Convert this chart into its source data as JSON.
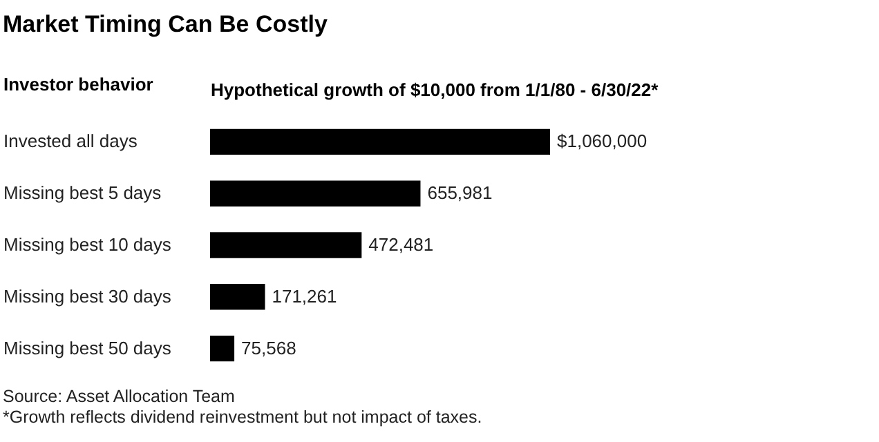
{
  "chart_data": {
    "type": "bar",
    "orientation": "horizontal",
    "title": "Market Timing Can Be Costly",
    "ylabel": "Investor behavior",
    "xlabel": "Hypothetical growth of $10,000 from 1/1/80 - 6/30/22*",
    "categories": [
      "Invested all days",
      "Missing best 5 days",
      "Missing best 10 days",
      "Missing best 30 days",
      "Missing best 50 days"
    ],
    "values": [
      1060000,
      655981,
      472481,
      171261,
      75568
    ],
    "value_labels": [
      "$1,060,000",
      "655,981",
      "472,481",
      "171,261",
      "75,568"
    ],
    "color": "#000000",
    "annotations": [
      "Source: Asset Allocation Team",
      "*Growth reflects dividend reinvestment but not impact of taxes."
    ]
  }
}
